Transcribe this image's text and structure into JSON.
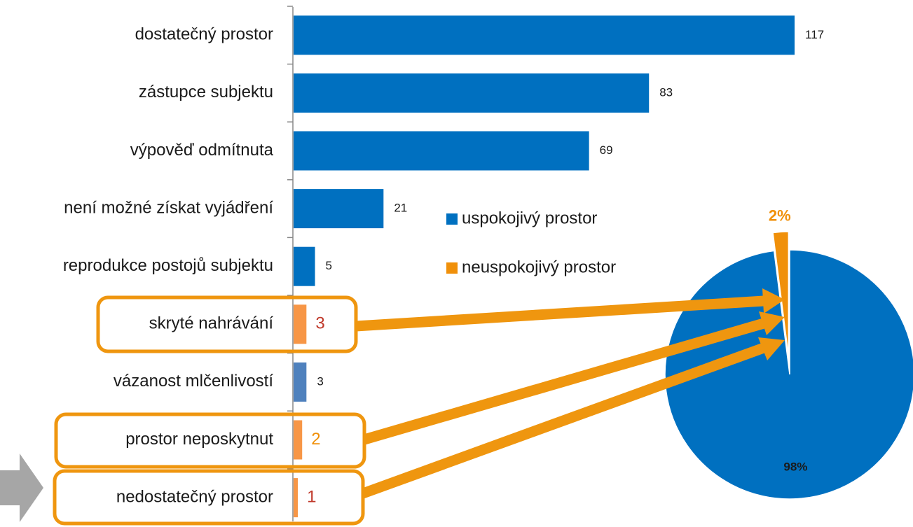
{
  "chart_data": [
    {
      "type": "bar",
      "categories": [
        "dostatečný prostor",
        "zástupce subjektu",
        "výpověď odmítnuta",
        "není možné získat vyjádření",
        "reprodukce postojů subjektu",
        "skryté nahrávání",
        "vázanost mlčenlivostí",
        "prostor neposkytnut",
        "nedostatečný prostor"
      ],
      "values": [
        117,
        83,
        69,
        21,
        5,
        3,
        3,
        2,
        1
      ],
      "colors": [
        "#0070c0",
        "#0070c0",
        "#0070c0",
        "#0070c0",
        "#0070c0",
        "#f79646",
        "#4f81bd",
        "#f79646",
        "#f79646"
      ],
      "value_label_colors": [
        "#1a1a1a",
        "#1a1a1a",
        "#1a1a1a",
        "#1a1a1a",
        "#1a1a1a",
        "#c0392b",
        "#1a1a1a",
        "#f0900a",
        "#c0392b"
      ]
    },
    {
      "type": "pie",
      "series": [
        {
          "name": "uspokojivý prostor",
          "color": "#0070c0",
          "values": [
            98
          ],
          "value_labels": [
            "98%"
          ],
          "label_color": "#1a1a1a"
        },
        {
          "name": "neuspokojivý prostor",
          "color": "#f0900a",
          "values": [
            2
          ],
          "value_labels": [
            "2%"
          ],
          "label_color": "#f0900a"
        }
      ]
    }
  ]
}
